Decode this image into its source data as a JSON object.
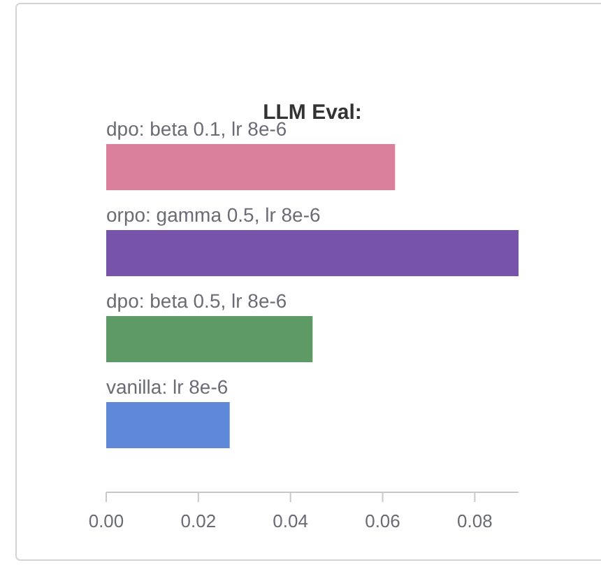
{
  "chart_data": {
    "type": "bar",
    "orientation": "horizontal",
    "title": "LLM Eval:",
    "categories": [
      "dpo: beta 0.1, lr 8e-6",
      "orpo: gamma 0.5, lr 8e-6",
      "dpo: beta 0.5, lr 8e-6",
      "vanilla: lr 8e-6"
    ],
    "values": [
      0.0627,
      0.0895,
      0.0448,
      0.0268
    ],
    "colors": [
      "#da7f9c",
      "#7754aa",
      "#5e9a66",
      "#5f87d8"
    ],
    "xlim": [
      0,
      0.0895
    ],
    "xticks": [
      {
        "value": 0,
        "label": "0.00"
      },
      {
        "value": 0.02,
        "label": "0.02"
      },
      {
        "value": 0.04,
        "label": "0.04"
      },
      {
        "value": 0.06,
        "label": "0.06"
      },
      {
        "value": 0.08,
        "label": "0.08"
      }
    ],
    "grid": false
  }
}
